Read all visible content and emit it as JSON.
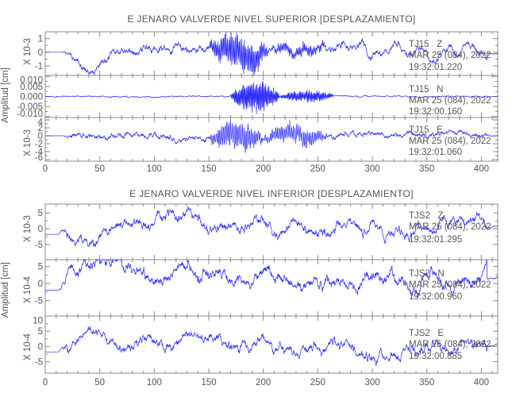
{
  "chart_data": [
    {
      "type": "line",
      "title": "E JENARO VALVERDE NIVEL SUPERIOR [DESPLAZAMIENTO]",
      "ylabel": "Amplitud [cm]",
      "xlim": [
        0,
        415
      ],
      "xticks": [
        0,
        50,
        100,
        150,
        200,
        250,
        300,
        350,
        400
      ],
      "panels": [
        {
          "station": "TJ15   Z",
          "date": "MAR 25 (084), 2022",
          "time": "19:32:01.220",
          "scale_label": "X 10-3",
          "ylim": [
            -1.7,
            1.5
          ],
          "yticks": [
            1,
            0,
            -1
          ],
          "ytick_labels": [
            "1",
            "0",
            "-1"
          ],
          "signal": {
            "seed": 11,
            "onset": 15,
            "low": 0.55,
            "hf": 0.15,
            "bursts": [
              [
                150,
                205,
                1.3
              ],
              [
                205,
                260,
                0.35
              ]
            ],
            "period": 1.2
          }
        },
        {
          "station": "TJ15   N",
          "date": "MAR 25 (084), 2022",
          "time": "19:32:00.160",
          "scale_label": "",
          "ylim": [
            -0.0105,
            0.0105
          ],
          "yticks": [
            0.01,
            0.005,
            0,
            -0.005,
            -0.01
          ],
          "ytick_labels": [
            "0.010",
            "0.005",
            "0.000",
            "-0.005",
            "-0.010"
          ],
          "signal": {
            "seed": 23,
            "onset": 0,
            "low": 0.0002,
            "hf": 0.0005,
            "bursts": [
              [
                170,
                215,
                0.008
              ],
              [
                215,
                265,
                0.003
              ]
            ],
            "period": 1.0
          }
        },
        {
          "station": "TJ15   E",
          "date": "MAR 25 (084), 2022",
          "time": "19:32:01.060",
          "scale_label": "X 10-3",
          "ylim": [
            -6.4,
            4.6
          ],
          "yticks": [
            4,
            2,
            0,
            -2,
            -4,
            -6
          ],
          "ytick_labels": [
            "4",
            "2",
            "0",
            "-2",
            "-4",
            "-6"
          ],
          "signal": {
            "seed": 37,
            "onset": 15,
            "low": 0.6,
            "hf": 1.0,
            "bursts": [
              [
                150,
                200,
                3.5
              ],
              [
                200,
                260,
                2.2
              ]
            ],
            "period": 1.6
          }
        }
      ]
    },
    {
      "type": "line",
      "title": "E JENARO VALVERDE NIVEL INFERIOR [DESPLAZAMIENTO]",
      "ylabel": "Amplitud [cm]",
      "xlim": [
        0,
        415
      ],
      "xticks": [
        0,
        50,
        100,
        150,
        200,
        250,
        300,
        350,
        400
      ],
      "panels": [
        {
          "station": "TJS2   Z",
          "date": "MAR 25 (084), 2022",
          "time": "19:32:01.295",
          "scale_label": "X 10-3",
          "ylim": [
            -9.8,
            7.8
          ],
          "yticks": [
            5,
            0,
            -5
          ],
          "ytick_labels": [
            "5",
            "0",
            "-5"
          ],
          "signal": {
            "seed": 51,
            "onset": 12,
            "low": 3.0,
            "hf": 1.0,
            "bursts": [],
            "period": 2.5
          }
        },
        {
          "station": "TJS2   N",
          "date": "MAR 25 (084), 2022",
          "time": "19:32:00.960",
          "scale_label": "X 10-4",
          "ylim": [
            -9.5,
            7.0
          ],
          "yticks": [
            5,
            0,
            -5
          ],
          "ytick_labels": [
            "5",
            "0",
            "-5"
          ],
          "signal": {
            "seed": 67,
            "onset": 12,
            "low": 3.2,
            "hf": 1.0,
            "bursts": [],
            "period": 2.5
          }
        },
        {
          "station": "TJS2   E",
          "date": "MAR 25 (084), 2022",
          "time": "19:32:00.885",
          "scale_label": "X 10-4",
          "ylim": [
            -8.8,
            10.0
          ],
          "yticks": [
            10,
            5,
            0,
            -5
          ],
          "ytick_labels": [
            "10",
            "5",
            "0",
            "-5"
          ],
          "signal": {
            "seed": 83,
            "onset": 12,
            "low": 3.0,
            "hf": 1.1,
            "bursts": [],
            "period": 2.5
          }
        }
      ]
    }
  ],
  "colors": {
    "trace": "#2a2aff",
    "axis": "#8a8a8a",
    "text": "#555555"
  }
}
